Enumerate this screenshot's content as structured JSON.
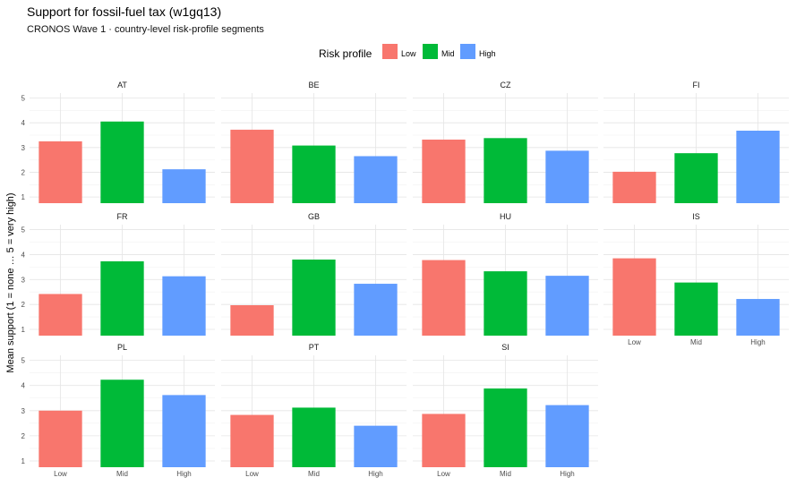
{
  "chart_data": {
    "type": "bar",
    "title": "Support for fossil-fuel tax  (w1gq13)",
    "subtitle": "CRONOS Wave 1 · country-level risk-profile segments",
    "ylabel": "Mean support (1 = none … 5 = very high)",
    "xlabel": "",
    "ylim": [
      0.75,
      5.2
    ],
    "yticks": [
      1,
      2,
      3,
      4,
      5
    ],
    "grid": true,
    "legend": {
      "title": "Risk profile",
      "position": "top",
      "items": [
        {
          "label": "Low",
          "color": "#F8766D"
        },
        {
          "label": "Mid",
          "color": "#00BA38"
        },
        {
          "label": "High",
          "color": "#619CFF"
        }
      ]
    },
    "categories": [
      "Low",
      "Mid",
      "High"
    ],
    "facets": [
      {
        "name": "AT",
        "values": [
          3.25,
          4.05,
          2.12
        ]
      },
      {
        "name": "BE",
        "values": [
          3.72,
          3.08,
          2.65
        ]
      },
      {
        "name": "CZ",
        "values": [
          3.32,
          3.38,
          2.87
        ]
      },
      {
        "name": "FI",
        "values": [
          2.02,
          2.77,
          3.68
        ]
      },
      {
        "name": "FR",
        "values": [
          2.42,
          3.73,
          3.13
        ]
      },
      {
        "name": "GB",
        "values": [
          1.97,
          3.8,
          2.83
        ]
      },
      {
        "name": "HU",
        "values": [
          3.78,
          3.33,
          3.15
        ]
      },
      {
        "name": "IS",
        "values": [
          3.85,
          2.88,
          2.22
        ]
      },
      {
        "name": "PL",
        "values": [
          3.0,
          4.23,
          3.62
        ]
      },
      {
        "name": "PT",
        "values": [
          2.83,
          3.12,
          2.4
        ]
      },
      {
        "name": "SI",
        "values": [
          2.87,
          3.88,
          3.22
        ]
      }
    ]
  }
}
